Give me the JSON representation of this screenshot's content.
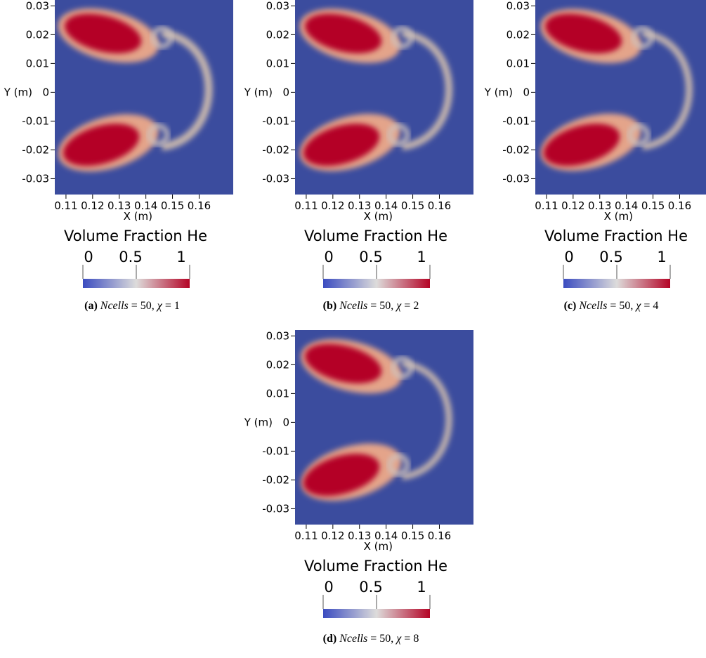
{
  "panels": [
    {
      "tag": "(a)",
      "var": "Ncells",
      "eq": " = 50, ",
      "chi": "χ",
      "chi_value": " = 1"
    },
    {
      "tag": "(b)",
      "var": "Ncells",
      "eq": " = 50, ",
      "chi": "χ",
      "chi_value": " = 2"
    },
    {
      "tag": "(c)",
      "var": "Ncells",
      "eq": " = 50, ",
      "chi": "χ",
      "chi_value": " = 4"
    },
    {
      "tag": "(d)",
      "var": "Ncells",
      "eq": " = 50, ",
      "chi": "χ",
      "chi_value": " = 8"
    }
  ],
  "colors": {
    "background_field": "#3b4c9e",
    "high": "#b40426",
    "mid": "#dddcdb",
    "low": "#3b4cc0"
  },
  "chart_data": [
    {
      "type": "heatmap",
      "xlabel": "X (m)",
      "ylabel": "Y (m)",
      "x_ticks": [
        "0.11",
        "0.12",
        "0.13",
        "0.14",
        "0.15",
        "0.16"
      ],
      "y_ticks": [
        "0.03",
        "0.02",
        "0.01",
        "0",
        "-0.01",
        "-0.02",
        "-0.03"
      ],
      "x_tick_values": [
        0.11,
        0.12,
        0.13,
        0.14,
        0.15,
        0.16
      ],
      "y_tick_values": [
        0.03,
        0.02,
        0.01,
        0,
        -0.01,
        -0.02,
        -0.03
      ],
      "xlim": [
        0.1058,
        0.1728
      ],
      "ylim": [
        -0.0355,
        0.0335
      ],
      "colorbar": {
        "title": "Volume Fraction He",
        "labels": [
          "0",
          "0.5",
          "1"
        ],
        "range": [
          0,
          1
        ]
      }
    }
  ]
}
